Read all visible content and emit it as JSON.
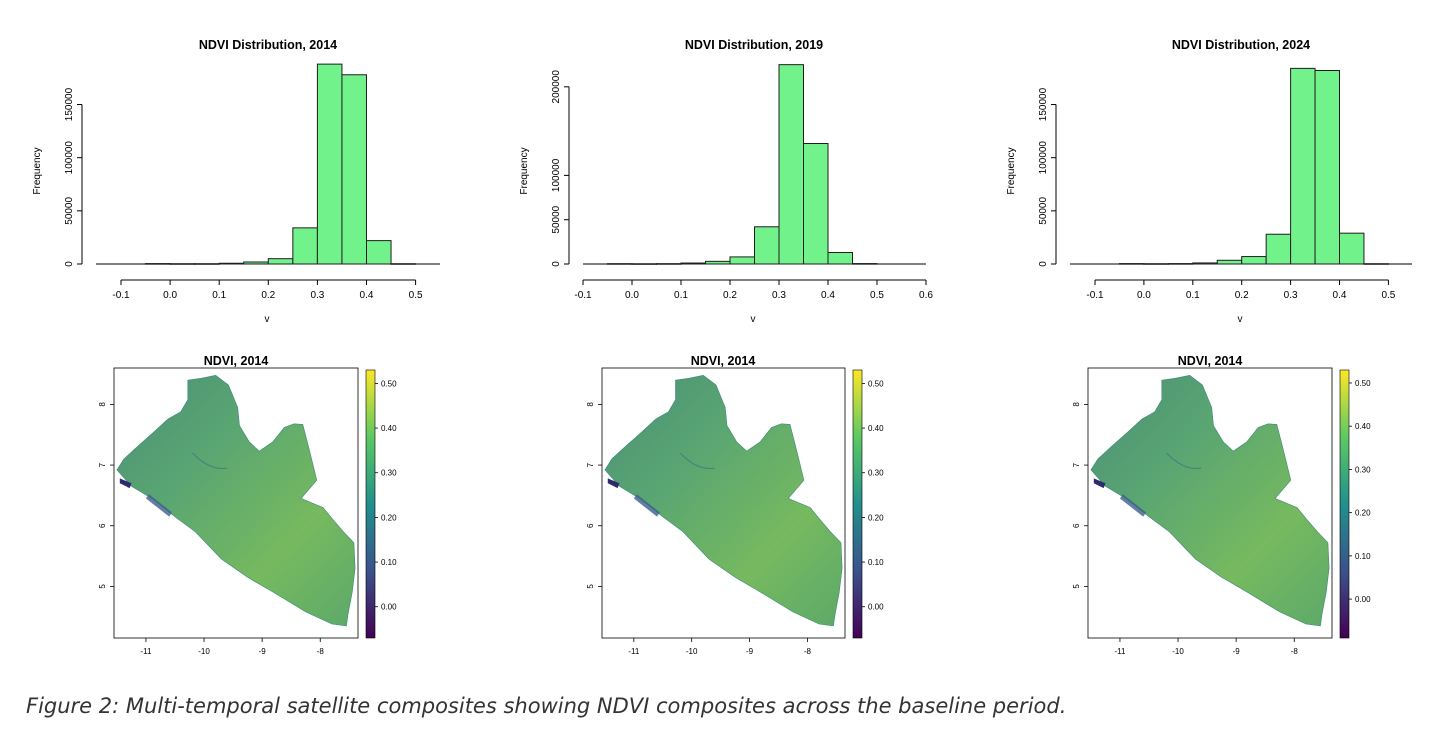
{
  "caption": "Figure 2: Multi-temporal satellite composites showing NDVI composites across the baseline period.",
  "colors": {
    "bar_fill": "#72f28b",
    "bar_stroke": "#1e1e1e",
    "axis": "#000000",
    "map_mid": "#4f9a77",
    "viridis": [
      "#440154",
      "#3b528b",
      "#21908c",
      "#5dc863",
      "#fde725"
    ]
  },
  "chart_data": [
    {
      "type": "bar",
      "title": "NDVI Distribution, 2014",
      "xlabel": "v",
      "ylabel": "Frequency",
      "xlim": [
        -0.15,
        0.55
      ],
      "ylim": [
        0,
        190000
      ],
      "xticks": [
        "-0.1",
        "0.0",
        "0.1",
        "0.2",
        "0.3",
        "0.4",
        "0.5"
      ],
      "yticks": [
        "0",
        "50000",
        "100000",
        "150000"
      ],
      "bins": [
        {
          "start": -0.05,
          "end": 0.0,
          "value": 400
        },
        {
          "start": 0.0,
          "end": 0.05,
          "value": 300
        },
        {
          "start": 0.05,
          "end": 0.1,
          "value": 300
        },
        {
          "start": 0.1,
          "end": 0.15,
          "value": 700
        },
        {
          "start": 0.15,
          "end": 0.2,
          "value": 1900
        },
        {
          "start": 0.2,
          "end": 0.25,
          "value": 5000
        },
        {
          "start": 0.25,
          "end": 0.3,
          "value": 34000
        },
        {
          "start": 0.3,
          "end": 0.35,
          "value": 188000
        },
        {
          "start": 0.35,
          "end": 0.4,
          "value": 178000
        },
        {
          "start": 0.4,
          "end": 0.45,
          "value": 22000
        },
        {
          "start": 0.45,
          "end": 0.5,
          "value": 300
        }
      ]
    },
    {
      "type": "bar",
      "title": "NDVI Distribution, 2019",
      "xlabel": "v",
      "ylabel": "Frequency",
      "xlim": [
        -0.15,
        0.6
      ],
      "ylim": [
        0,
        228000
      ],
      "xticks": [
        "-0.1",
        "0.0",
        "0.1",
        "0.2",
        "0.3",
        "0.4",
        "0.5",
        "0.6"
      ],
      "yticks": [
        "0",
        "50000",
        "100000",
        "200000"
      ],
      "bins": [
        {
          "start": -0.05,
          "end": 0.0,
          "value": 400
        },
        {
          "start": 0.0,
          "end": 0.05,
          "value": 300
        },
        {
          "start": 0.05,
          "end": 0.1,
          "value": 400
        },
        {
          "start": 0.1,
          "end": 0.15,
          "value": 1100
        },
        {
          "start": 0.15,
          "end": 0.2,
          "value": 3000
        },
        {
          "start": 0.2,
          "end": 0.25,
          "value": 8000
        },
        {
          "start": 0.25,
          "end": 0.3,
          "value": 42000
        },
        {
          "start": 0.3,
          "end": 0.35,
          "value": 225000
        },
        {
          "start": 0.35,
          "end": 0.4,
          "value": 136000
        },
        {
          "start": 0.4,
          "end": 0.45,
          "value": 13000
        },
        {
          "start": 0.45,
          "end": 0.5,
          "value": 500
        }
      ]
    },
    {
      "type": "bar",
      "title": "NDVI Distribution, 2024",
      "xlabel": "v",
      "ylabel": "Frequency",
      "xlim": [
        -0.15,
        0.55
      ],
      "ylim": [
        0,
        190000
      ],
      "xticks": [
        "-0.1",
        "0.0",
        "0.1",
        "0.2",
        "0.3",
        "0.4",
        "0.5"
      ],
      "yticks": [
        "0",
        "50000",
        "100000",
        "150000"
      ],
      "bins": [
        {
          "start": -0.05,
          "end": 0.0,
          "value": 400
        },
        {
          "start": 0.0,
          "end": 0.05,
          "value": 300
        },
        {
          "start": 0.05,
          "end": 0.1,
          "value": 400
        },
        {
          "start": 0.1,
          "end": 0.15,
          "value": 1000
        },
        {
          "start": 0.15,
          "end": 0.2,
          "value": 3500
        },
        {
          "start": 0.2,
          "end": 0.25,
          "value": 7000
        },
        {
          "start": 0.25,
          "end": 0.3,
          "value": 28000
        },
        {
          "start": 0.3,
          "end": 0.35,
          "value": 184000
        },
        {
          "start": 0.35,
          "end": 0.4,
          "value": 182000
        },
        {
          "start": 0.4,
          "end": 0.45,
          "value": 29000
        },
        {
          "start": 0.45,
          "end": 0.5,
          "value": 300
        }
      ]
    },
    {
      "type": "heatmap",
      "title": "NDVI, 2014",
      "xticks": [
        "-11",
        "-10",
        "-9",
        "-8"
      ],
      "xtick_values": [
        -11,
        -10,
        -9,
        -8
      ],
      "yticks": [
        "5",
        "6",
        "7",
        "8"
      ],
      "ytick_values": [
        5,
        6,
        7,
        8
      ],
      "xlim": [
        -11.55,
        -7.35
      ],
      "ylim": [
        4.15,
        8.6
      ],
      "legend_ticks": [
        "0.00",
        "0.10",
        "0.20",
        "0.30",
        "0.40",
        "0.50"
      ],
      "legend_values": [
        0.0,
        0.1,
        0.2,
        0.3,
        0.4,
        0.5
      ],
      "legend_range": [
        -0.07,
        0.53
      ]
    },
    {
      "type": "heatmap",
      "title": "NDVI, 2014",
      "xticks": [
        "-11",
        "-10",
        "-9",
        "-8"
      ],
      "xtick_values": [
        -11,
        -10,
        -9,
        -8
      ],
      "yticks": [
        "5",
        "6",
        "7",
        "8"
      ],
      "ytick_values": [
        5,
        6,
        7,
        8
      ],
      "xlim": [
        -11.55,
        -7.35
      ],
      "ylim": [
        4.15,
        8.6
      ],
      "legend_ticks": [
        "0.00",
        "0.10",
        "0.20",
        "0.30",
        "0.40",
        "0.50"
      ],
      "legend_values": [
        0.0,
        0.1,
        0.2,
        0.3,
        0.4,
        0.5
      ],
      "legend_range": [
        -0.07,
        0.53
      ]
    },
    {
      "type": "heatmap",
      "title": "NDVI, 2014",
      "xticks": [
        "-11",
        "-10",
        "-9",
        "-8"
      ],
      "xtick_values": [
        -11,
        -10,
        -9,
        -8
      ],
      "yticks": [
        "5",
        "6",
        "7",
        "8"
      ],
      "ytick_values": [
        5,
        6,
        7,
        8
      ],
      "xlim": [
        -11.55,
        -7.35
      ],
      "ylim": [
        4.15,
        8.6
      ],
      "legend_ticks": [
        "0.00",
        "0.10",
        "0.20",
        "0.30",
        "0.40",
        "0.50"
      ],
      "legend_values": [
        0.0,
        0.1,
        0.2,
        0.3,
        0.4,
        0.5
      ],
      "legend_range": [
        -0.09,
        0.53
      ]
    }
  ]
}
